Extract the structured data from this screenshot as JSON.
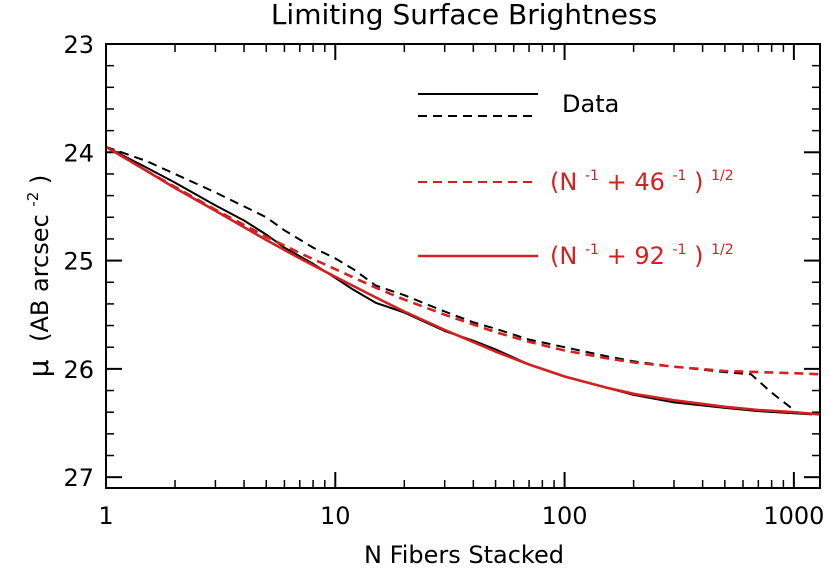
{
  "chart_data": {
    "type": "line",
    "title": "Limiting Surface Brightness",
    "xlabel": "N Fibers Stacked",
    "ylabel_symbol": "μ",
    "ylabel_units": "(AB arcsec",
    "ylabel_exp": "-2",
    "ylabel_close": ")",
    "xscale": "log",
    "xlim": [
      1,
      1300
    ],
    "ylim": [
      27.1,
      23
    ],
    "x_ticks": [
      {
        "value": 1,
        "label": "1"
      },
      {
        "value": 10,
        "label": "10"
      },
      {
        "value": 100,
        "label": "100"
      },
      {
        "value": 1000,
        "label": "1000"
      }
    ],
    "y_ticks": [
      {
        "value": 23,
        "label": "23"
      },
      {
        "value": 24,
        "label": "24"
      },
      {
        "value": 25,
        "label": "25"
      },
      {
        "value": 26,
        "label": "26"
      },
      {
        "value": 27,
        "label": "27"
      }
    ],
    "grid": false,
    "legend_position": "top-right",
    "legend": {
      "data_label": "Data",
      "model46": {
        "base": "(N",
        "exp1": "-1",
        "mid": " + 46",
        "exp2": "-1",
        "close": ")",
        "exp3": "1/2"
      },
      "model92": {
        "base": "(N",
        "exp1": "-1",
        "mid": " + 92",
        "exp2": "-1",
        "close": ")",
        "exp3": "1/2"
      }
    },
    "series": [
      {
        "name": "Data (solid)",
        "color": "#000000",
        "style": "solid",
        "x": [
          1,
          1.5,
          2,
          3,
          4,
          5,
          6,
          8,
          10,
          12,
          15,
          20,
          30,
          40,
          50,
          70,
          100,
          150,
          200,
          300,
          500,
          700,
          1000,
          1200
        ],
        "y": [
          23.95,
          24.14,
          24.28,
          24.49,
          24.63,
          24.76,
          24.88,
          25.03,
          25.16,
          25.27,
          25.39,
          25.48,
          25.65,
          25.74,
          25.82,
          25.96,
          26.07,
          26.17,
          26.24,
          26.31,
          26.36,
          26.39,
          26.41,
          26.42
        ]
      },
      {
        "name": "Data (dashed)",
        "color": "#000000",
        "style": "dashed",
        "x": [
          1,
          1.5,
          2,
          3,
          4,
          5,
          6,
          8,
          10,
          12,
          15,
          20,
          30,
          40,
          50,
          70,
          100,
          150,
          200,
          300,
          500,
          650,
          800,
          1000
        ],
        "y": [
          23.95,
          24.08,
          24.2,
          24.37,
          24.5,
          24.6,
          24.72,
          24.88,
          24.98,
          25.08,
          25.23,
          25.32,
          25.47,
          25.57,
          25.63,
          25.73,
          25.8,
          25.88,
          25.93,
          25.98,
          26.03,
          26.05,
          26.22,
          26.38
        ]
      },
      {
        "name": "(N^-1 + 46^-1)^1/2",
        "color": "#d42020",
        "style": "dashed",
        "x": [
          1,
          1.5,
          2,
          3,
          5,
          7,
          10,
          15,
          20,
          30,
          50,
          70,
          100,
          150,
          200,
          300,
          500,
          700,
          1000,
          1300
        ],
        "y": [
          23.95,
          24.17,
          24.32,
          24.53,
          24.78,
          24.93,
          25.08,
          25.25,
          25.36,
          25.5,
          25.66,
          25.75,
          25.83,
          25.9,
          25.94,
          25.98,
          26.02,
          26.03,
          26.04,
          26.05
        ]
      },
      {
        "name": "(N^-1 + 92^-1)^1/2",
        "color": "#d42020",
        "style": "solid",
        "x": [
          1,
          1.5,
          2,
          3,
          5,
          7,
          10,
          15,
          20,
          30,
          50,
          70,
          100,
          150,
          200,
          300,
          500,
          700,
          1000,
          1300
        ],
        "y": [
          23.95,
          24.17,
          24.33,
          24.54,
          24.81,
          24.98,
          25.15,
          25.34,
          25.47,
          25.64,
          25.84,
          25.96,
          26.07,
          26.17,
          26.23,
          26.29,
          26.35,
          26.38,
          26.4,
          26.42
        ]
      }
    ]
  }
}
